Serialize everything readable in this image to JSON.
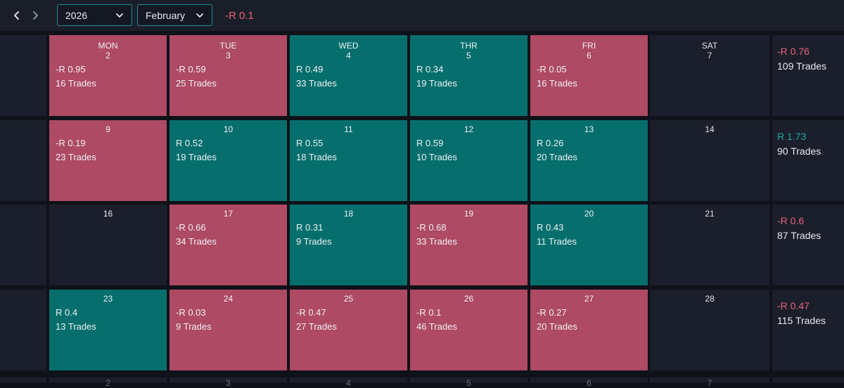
{
  "toolbar": {
    "year": "2026",
    "month": "February",
    "month_total": "-R 0.1",
    "prev_icon": "chevron-left-icon",
    "next_icon": "chevron-right-icon"
  },
  "colors": {
    "negative": "#ae4a63",
    "positive": "#066f6d",
    "negative_text": "#e8627a",
    "positive_text": "#1fa5a5"
  },
  "weekdays": [
    "MON",
    "TUE",
    "WED",
    "THR",
    "FRI",
    "SAT"
  ],
  "weeks": [
    {
      "days": [
        {
          "day": "2",
          "pnl": "-R 0.95",
          "trades": "16 Trades",
          "state": "neg"
        },
        {
          "day": "3",
          "pnl": "-R 0.59",
          "trades": "25 Trades",
          "state": "neg"
        },
        {
          "day": "4",
          "pnl": "R 0.49",
          "trades": "33 Trades",
          "state": "pos"
        },
        {
          "day": "5",
          "pnl": "R 0.34",
          "trades": "19 Trades",
          "state": "pos"
        },
        {
          "day": "6",
          "pnl": "-R 0.05",
          "trades": "16 Trades",
          "state": "neg"
        },
        {
          "day": "7",
          "pnl": "",
          "trades": "",
          "state": "none"
        }
      ],
      "summary": {
        "pnl": "-R 0.76",
        "trades": "109 Trades",
        "state": "neg"
      }
    },
    {
      "days": [
        {
          "day": "9",
          "pnl": "-R 0.19",
          "trades": "23 Trades",
          "state": "neg"
        },
        {
          "day": "10",
          "pnl": "R 0.52",
          "trades": "19 Trades",
          "state": "pos"
        },
        {
          "day": "11",
          "pnl": "R 0.55",
          "trades": "18 Trades",
          "state": "pos"
        },
        {
          "day": "12",
          "pnl": "R 0.59",
          "trades": "10 Trades",
          "state": "pos"
        },
        {
          "day": "13",
          "pnl": "R 0.26",
          "trades": "20 Trades",
          "state": "pos"
        },
        {
          "day": "14",
          "pnl": "",
          "trades": "",
          "state": "none"
        }
      ],
      "summary": {
        "pnl": "R 1.73",
        "trades": "90 Trades",
        "state": "pos"
      }
    },
    {
      "days": [
        {
          "day": "16",
          "pnl": "",
          "trades": "",
          "state": "none"
        },
        {
          "day": "17",
          "pnl": "-R 0.66",
          "trades": "34 Trades",
          "state": "neg"
        },
        {
          "day": "18",
          "pnl": "R 0.31",
          "trades": "9 Trades",
          "state": "pos"
        },
        {
          "day": "19",
          "pnl": "-R 0.68",
          "trades": "33 Trades",
          "state": "neg"
        },
        {
          "day": "20",
          "pnl": "R 0.43",
          "trades": "11 Trades",
          "state": "pos"
        },
        {
          "day": "21",
          "pnl": "",
          "trades": "",
          "state": "none"
        }
      ],
      "summary": {
        "pnl": "-R 0.6",
        "trades": "87 Trades",
        "state": "neg"
      }
    },
    {
      "days": [
        {
          "day": "23",
          "pnl": "R 0.4",
          "trades": "13 Trades",
          "state": "pos"
        },
        {
          "day": "24",
          "pnl": "-R 0.03",
          "trades": "9 Trades",
          "state": "neg"
        },
        {
          "day": "25",
          "pnl": "-R 0.47",
          "trades": "27 Trades",
          "state": "neg"
        },
        {
          "day": "26",
          "pnl": "-R 0.1",
          "trades": "46 Trades",
          "state": "neg"
        },
        {
          "day": "27",
          "pnl": "-R 0.27",
          "trades": "20 Trades",
          "state": "neg"
        },
        {
          "day": "28",
          "pnl": "",
          "trades": "",
          "state": "none"
        }
      ],
      "summary": {
        "pnl": "-R 0.47",
        "trades": "115 Trades",
        "state": "neg"
      }
    }
  ],
  "next_week_days": [
    "2",
    "3",
    "4",
    "5",
    "6",
    "7"
  ]
}
